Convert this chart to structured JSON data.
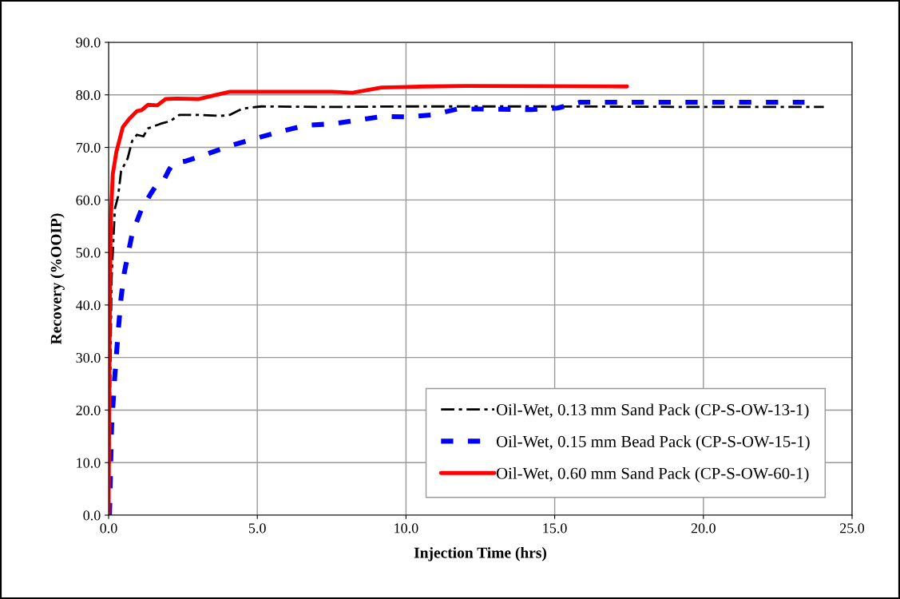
{
  "chart_data": {
    "type": "line",
    "xlabel": "Injection Time (hrs)",
    "ylabel": "Recovery (%OOIP)",
    "xlim": [
      0,
      25
    ],
    "ylim": [
      0,
      90
    ],
    "xticks": [
      {
        "value": 0,
        "label": "0.0"
      },
      {
        "value": 5,
        "label": "5.0"
      },
      {
        "value": 10,
        "label": "10.0"
      },
      {
        "value": 15,
        "label": "15.0"
      },
      {
        "value": 20,
        "label": "20.0"
      },
      {
        "value": 25,
        "label": "25.0"
      }
    ],
    "yticks": [
      {
        "value": 0,
        "label": "0.0"
      },
      {
        "value": 10,
        "label": "10.0"
      },
      {
        "value": 20,
        "label": "20.0"
      },
      {
        "value": 30,
        "label": "30.0"
      },
      {
        "value": 40,
        "label": "40.0"
      },
      {
        "value": 50,
        "label": "50.0"
      },
      {
        "value": 60,
        "label": "60.0"
      },
      {
        "value": 70,
        "label": "70.0"
      },
      {
        "value": 80,
        "label": "80.0"
      },
      {
        "value": 90,
        "label": "90.0"
      }
    ],
    "grid": true,
    "legend": "bottom right",
    "marker": "none",
    "series": [
      {
        "name": "Oil-Wet, 0.13 mm Sand Pack (CP-S-OW-13-1)",
        "color": "#000000",
        "line_style": "dashed",
        "x": [
          0,
          0.1,
          0.21,
          0.32,
          0.42,
          0.64,
          0.79,
          0.95,
          1.17,
          1.32,
          1.75,
          2.07,
          2.38,
          3.02,
          3.76,
          4.08,
          4.5,
          5.14,
          7.5,
          10,
          15,
          20,
          24.05
        ],
        "values": [
          0,
          45,
          58.3,
          60.7,
          65.5,
          67.9,
          71.2,
          72.4,
          72.1,
          73.6,
          74.5,
          75.0,
          76.2,
          76.2,
          76.0,
          76.2,
          77.4,
          77.8,
          77.7,
          77.8,
          77.8,
          77.7,
          77.7
        ]
      },
      {
        "name": "Oil-Wet, 0.15 mm Bead Pack (CP-S-OW-15-1)",
        "color": "#0000ff",
        "line_style": "dashed",
        "x": [
          0.03,
          0.05,
          0.1,
          0.2,
          0.32,
          0.42,
          0.53,
          0.79,
          1.11,
          1.43,
          1.64,
          1.85,
          2.01,
          2.17,
          2.6,
          3.34,
          4.08,
          5.0,
          5.77,
          6.62,
          7.54,
          9.23,
          10.05,
          10.9,
          11.72,
          12.54,
          14.23,
          15.1,
          15.86,
          20,
          23.4
        ],
        "values": [
          0,
          4.7,
          16.7,
          25.8,
          34.8,
          41.4,
          46.2,
          53.5,
          58.3,
          61.3,
          63.1,
          63.7,
          65.5,
          67.0,
          67.4,
          68.8,
          70.3,
          71.8,
          73.0,
          74.2,
          74.5,
          75.9,
          75.8,
          76.2,
          77.3,
          77.3,
          77.2,
          77.5,
          78.6,
          78.6,
          78.6
        ]
      },
      {
        "name": "Oil-Wet, 0.60 mm Sand Pack (CP-S-OW-60-1)",
        "color": "#ff0000",
        "line_style": "solid",
        "x": [
          0,
          0.03,
          0.07,
          0.14,
          0.26,
          0.48,
          0.69,
          0.95,
          1.11,
          1.32,
          1.64,
          1.91,
          2.28,
          3.02,
          3.55,
          4.08,
          5.0,
          7.5,
          8.2,
          9.17,
          10.7,
          12,
          17.43
        ],
        "values": [
          0,
          31.8,
          55.9,
          64.9,
          69.1,
          73.9,
          75.4,
          76.9,
          77.1,
          78.1,
          78.0,
          79.2,
          79.3,
          79.2,
          79.9,
          80.6,
          80.6,
          80.6,
          80.4,
          81.4,
          81.6,
          81.7,
          81.6
        ]
      }
    ]
  }
}
